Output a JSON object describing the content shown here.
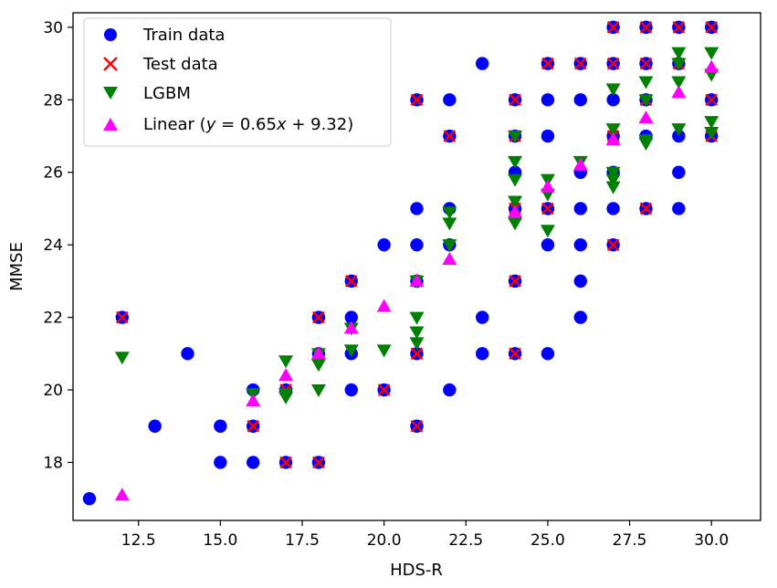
{
  "chart_data": {
    "type": "scatter",
    "xlabel": "HDS-R",
    "ylabel": "MMSE",
    "xlim": [
      10.5,
      31.5
    ],
    "ylim": [
      16.4,
      30.4
    ],
    "xticks": [
      12.5,
      15.0,
      17.5,
      20.0,
      22.5,
      25.0,
      27.5,
      30.0
    ],
    "xtick_labels": [
      "12.5",
      "15.0",
      "17.5",
      "20.0",
      "22.5",
      "25.0",
      "27.5",
      "30.0"
    ],
    "yticks": [
      18,
      20,
      22,
      24,
      26,
      28,
      30
    ],
    "ytick_labels": [
      "18",
      "20",
      "22",
      "24",
      "26",
      "28",
      "30"
    ],
    "legend_placement": "upper-left",
    "series": [
      {
        "name": "Train data",
        "marker": "circle",
        "color": "#0000ff",
        "points": [
          [
            11,
            17
          ],
          [
            12,
            22
          ],
          [
            13,
            19
          ],
          [
            14,
            21
          ],
          [
            15,
            19
          ],
          [
            15,
            18
          ],
          [
            16,
            20
          ],
          [
            16,
            18
          ],
          [
            16,
            19
          ],
          [
            17,
            20
          ],
          [
            17,
            18
          ],
          [
            18,
            21
          ],
          [
            18,
            18
          ],
          [
            18,
            22
          ],
          [
            19,
            20
          ],
          [
            19,
            21
          ],
          [
            19,
            22
          ],
          [
            19,
            23
          ],
          [
            20,
            24
          ],
          [
            20,
            20
          ],
          [
            21,
            25
          ],
          [
            21,
            24
          ],
          [
            21,
            23
          ],
          [
            21,
            21
          ],
          [
            21,
            19
          ],
          [
            21,
            28
          ],
          [
            22,
            28
          ],
          [
            22,
            27
          ],
          [
            22,
            24
          ],
          [
            22,
            20
          ],
          [
            22,
            25
          ],
          [
            23,
            29
          ],
          [
            23,
            22
          ],
          [
            23,
            21
          ],
          [
            24,
            28
          ],
          [
            24,
            27
          ],
          [
            24,
            26
          ],
          [
            24,
            25
          ],
          [
            24,
            23
          ],
          [
            24,
            21
          ],
          [
            25,
            29
          ],
          [
            25,
            28
          ],
          [
            25,
            27
          ],
          [
            25,
            25
          ],
          [
            25,
            24
          ],
          [
            25,
            21
          ],
          [
            26,
            29
          ],
          [
            26,
            28
          ],
          [
            26,
            26
          ],
          [
            26,
            25
          ],
          [
            26,
            24
          ],
          [
            26,
            23
          ],
          [
            26,
            22
          ],
          [
            27,
            30
          ],
          [
            27,
            29
          ],
          [
            27,
            28
          ],
          [
            27,
            27
          ],
          [
            27,
            26
          ],
          [
            27,
            25
          ],
          [
            27,
            24
          ],
          [
            28,
            30
          ],
          [
            28,
            29
          ],
          [
            28,
            28
          ],
          [
            28,
            27
          ],
          [
            28,
            25
          ],
          [
            29,
            30
          ],
          [
            29,
            29
          ],
          [
            29,
            27
          ],
          [
            29,
            26
          ],
          [
            29,
            25
          ],
          [
            30,
            30
          ],
          [
            30,
            28
          ],
          [
            30,
            27
          ]
        ]
      },
      {
        "name": "Test data",
        "marker": "x",
        "color": "#ff0000",
        "points": [
          [
            12,
            22
          ],
          [
            16,
            19
          ],
          [
            17,
            20
          ],
          [
            17,
            18
          ],
          [
            18,
            22
          ],
          [
            18,
            18
          ],
          [
            19,
            23
          ],
          [
            20,
            20
          ],
          [
            21,
            28
          ],
          [
            21,
            23
          ],
          [
            21,
            21
          ],
          [
            21,
            19
          ],
          [
            22,
            27
          ],
          [
            24,
            28
          ],
          [
            24,
            27
          ],
          [
            24,
            25
          ],
          [
            24,
            23
          ],
          [
            24,
            21
          ],
          [
            25,
            29
          ],
          [
            25,
            25
          ],
          [
            26,
            29
          ],
          [
            27,
            30
          ],
          [
            27,
            29
          ],
          [
            27,
            27
          ],
          [
            27,
            24
          ],
          [
            28,
            30
          ],
          [
            28,
            29
          ],
          [
            28,
            28
          ],
          [
            28,
            25
          ],
          [
            29,
            30
          ],
          [
            29,
            29
          ],
          [
            30,
            30
          ],
          [
            30,
            28
          ],
          [
            30,
            27
          ]
        ]
      },
      {
        "name": "LGBM",
        "marker": "triangle-down",
        "color": "#008000",
        "points": [
          [
            12,
            20.9
          ],
          [
            16,
            19.9
          ],
          [
            17,
            20.8
          ],
          [
            17,
            19.8
          ],
          [
            17,
            19.9
          ],
          [
            18,
            20.0
          ],
          [
            18,
            20.7
          ],
          [
            18,
            21.0
          ],
          [
            19,
            21.1
          ],
          [
            19,
            21.7
          ],
          [
            20,
            21.1
          ],
          [
            21,
            22.0
          ],
          [
            21,
            21.6
          ],
          [
            21,
            21.3
          ],
          [
            21,
            23.0
          ],
          [
            22,
            24.9
          ],
          [
            22,
            24.6
          ],
          [
            22,
            24.0
          ],
          [
            24,
            27.0
          ],
          [
            24,
            26.3
          ],
          [
            24,
            25.8
          ],
          [
            24,
            25.2
          ],
          [
            24,
            24.6
          ],
          [
            25,
            25.8
          ],
          [
            25,
            25.4
          ],
          [
            25,
            24.4
          ],
          [
            26,
            26.3
          ],
          [
            27,
            28.3
          ],
          [
            27,
            27.2
          ],
          [
            27,
            26.0
          ],
          [
            27,
            25.8
          ],
          [
            27,
            25.6
          ],
          [
            28,
            28.5
          ],
          [
            28,
            28.0
          ],
          [
            28,
            26.8
          ],
          [
            28,
            26.9
          ],
          [
            29,
            29.3
          ],
          [
            29,
            28.5
          ],
          [
            29,
            29.0
          ],
          [
            29,
            27.2
          ],
          [
            30,
            29.3
          ],
          [
            30,
            28.7
          ],
          [
            30,
            27.4
          ],
          [
            30,
            27.1
          ]
        ]
      },
      {
        "name": "Linear",
        "marker": "triangle-up",
        "color": "#ff00ff",
        "points": [
          [
            12,
            17.1
          ],
          [
            16,
            19.7
          ],
          [
            17,
            20.4
          ],
          [
            18,
            21.0
          ],
          [
            19,
            21.7
          ],
          [
            20,
            22.3
          ],
          [
            21,
            23.0
          ],
          [
            22,
            23.6
          ],
          [
            24,
            24.9
          ],
          [
            25,
            25.6
          ],
          [
            26,
            26.2
          ],
          [
            27,
            26.9
          ],
          [
            28,
            27.5
          ],
          [
            29,
            28.2
          ],
          [
            30,
            28.9
          ]
        ]
      }
    ]
  },
  "legend": {
    "train_label": "Train data",
    "test_label": "Test data",
    "lgbm_label": "LGBM",
    "linear_prefix": "Linear (",
    "linear_y": "y",
    "linear_mid": " = 0.65",
    "linear_x": "x",
    "linear_suffix": " + 9.32)"
  }
}
